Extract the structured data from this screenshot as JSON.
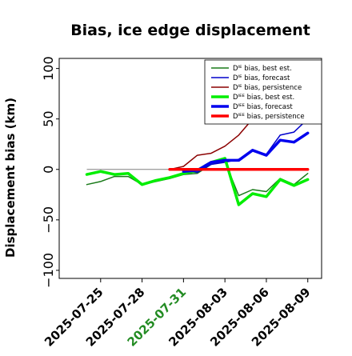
{
  "chart_data": {
    "type": "line",
    "title": "Bias, ice edge displacement",
    "ylabel": "Displacement bias (km)",
    "xlabel": "",
    "ylim": [
      -108,
      110
    ],
    "yticks": [
      -100,
      -50,
      0,
      50,
      100
    ],
    "ytick_labels": [
      "−100",
      "−50",
      "0",
      "50",
      "100"
    ],
    "x_axis": "date",
    "xlim": [
      "2025-07-22",
      "2025-08-10"
    ],
    "xticks": [
      "2025-07-25",
      "2025-07-28",
      "2025-07-31",
      "2025-08-03",
      "2025-08-06",
      "2025-08-09"
    ],
    "xtick_colors": [
      "#000000",
      "#000000",
      "#228B22",
      "#000000",
      "#000000",
      "#000000"
    ],
    "reference_line": {
      "y": 0,
      "color": "#808080",
      "x_range": [
        "2025-07-24",
        "2025-08-09"
      ]
    },
    "legend": {
      "position": "top-right"
    },
    "series": [
      {
        "name": "Dᴵᴱ bias, best est.",
        "color": "#1a7a1a",
        "width": 1.5,
        "x": [
          "2025-07-24",
          "2025-07-25",
          "2025-07-26",
          "2025-07-27",
          "2025-07-28",
          "2025-07-29",
          "2025-07-30",
          "2025-07-31",
          "2025-08-01",
          "2025-08-02",
          "2025-08-03",
          "2025-08-04",
          "2025-08-05",
          "2025-08-06",
          "2025-08-07",
          "2025-08-08",
          "2025-08-09"
        ],
        "y": [
          -15,
          -12,
          -7,
          -7,
          -15,
          -12,
          -9,
          -5,
          -4,
          5,
          8,
          -26,
          -20,
          -22,
          -9,
          -15,
          -4
        ]
      },
      {
        "name": "Dᴵᴱ bias, forecast",
        "color": "#0000cc",
        "width": 1.5,
        "x": [
          "2025-07-31",
          "2025-08-01",
          "2025-08-02",
          "2025-08-03",
          "2025-08-04",
          "2025-08-05",
          "2025-08-06",
          "2025-08-07",
          "2025-08-08",
          "2025-08-09"
        ],
        "y": [
          -2,
          -3,
          5,
          7,
          10,
          19,
          15,
          34,
          37,
          50
        ]
      },
      {
        "name": "Dᴵᴱ bias, persistence",
        "color": "#8b0000",
        "width": 1.5,
        "x": [
          "2025-07-30",
          "2025-07-31",
          "2025-08-01",
          "2025-08-02",
          "2025-08-03",
          "2025-08-04",
          "2025-08-05"
        ],
        "y": [
          0,
          3,
          14,
          16,
          23,
          34,
          50
        ]
      },
      {
        "name": "Dᴵᴱᴱ bias, best est.",
        "color": "#00ee00",
        "width": 3.5,
        "x": [
          "2025-07-24",
          "2025-07-25",
          "2025-07-26",
          "2025-07-27",
          "2025-07-28",
          "2025-07-29",
          "2025-07-30",
          "2025-07-31",
          "2025-08-01",
          "2025-08-02",
          "2025-08-03",
          "2025-08-04",
          "2025-08-05",
          "2025-08-06",
          "2025-08-07",
          "2025-08-08",
          "2025-08-09"
        ],
        "y": [
          -5,
          -2,
          -5,
          -4,
          -15,
          -11,
          -8,
          -4,
          -1,
          7,
          11,
          -35,
          -24,
          -27,
          -10,
          -16,
          -10
        ]
      },
      {
        "name": "Dᴵᴱᴱ bias, forecast",
        "color": "#0000ee",
        "width": 3.5,
        "x": [
          "2025-07-31",
          "2025-08-01",
          "2025-08-02",
          "2025-08-03",
          "2025-08-04",
          "2025-08-05",
          "2025-08-06",
          "2025-08-07",
          "2025-08-08",
          "2025-08-09"
        ],
        "y": [
          -2,
          -1,
          7,
          9,
          9,
          19,
          14,
          29,
          27,
          36
        ]
      },
      {
        "name": "Dᴵᴱᴱ bias, persistence",
        "color": "#ff0000",
        "width": 3.5,
        "x": [
          "2025-07-30",
          "2025-07-31",
          "2025-08-01",
          "2025-08-02",
          "2025-08-03",
          "2025-08-04",
          "2025-08-05",
          "2025-08-06",
          "2025-08-07",
          "2025-08-08",
          "2025-08-09"
        ],
        "y": [
          0,
          0,
          0,
          0,
          0,
          0,
          0,
          0,
          0,
          0,
          0
        ]
      }
    ]
  }
}
